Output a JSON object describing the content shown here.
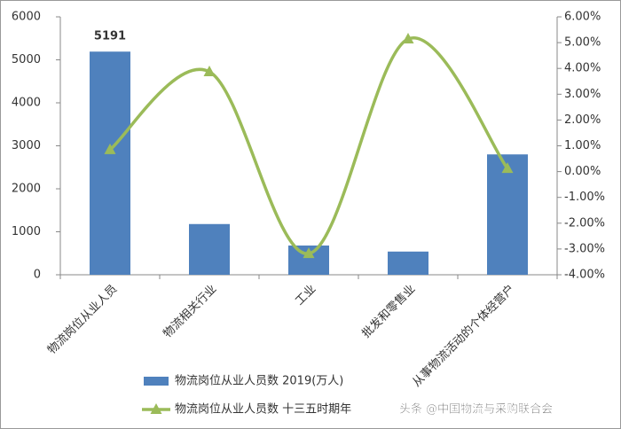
{
  "chart_data": {
    "type": "bar-line",
    "categories": [
      "物流岗位从业人员",
      "物流相关行业",
      "工业",
      "批发和零售业",
      "从事物流活动的个体经营户"
    ],
    "series": [
      {
        "name": "物流岗位从业人员数 2019(万人)",
        "type": "bar",
        "color": "#4f81bd",
        "values": [
          5191,
          1180,
          680,
          540,
          2800
        ],
        "value_labels": [
          "5191",
          null,
          null,
          null,
          null
        ]
      },
      {
        "name": "物流岗位从业人员数 十三五时期年",
        "type": "line",
        "axis": "y2",
        "color": "#9bbb59",
        "values": [
          0.85,
          3.87,
          -3.18,
          5.14,
          0.12
        ]
      }
    ],
    "ylim": [
      0,
      6000
    ],
    "yticks": [
      0,
      1000,
      2000,
      3000,
      4000,
      5000,
      6000
    ],
    "y2lim": [
      -4,
      6
    ],
    "y2ticks": [
      {
        "value": -4,
        "label": "-4.00%"
      },
      {
        "value": -3,
        "label": "-3.00%"
      },
      {
        "value": -2,
        "label": "-2.00%"
      },
      {
        "value": -1,
        "label": "-1.00%"
      },
      {
        "value": 0,
        "label": "0.00%"
      },
      {
        "value": 1,
        "label": "1.00%"
      },
      {
        "value": 2,
        "label": "2.00%"
      },
      {
        "value": 3,
        "label": "3.00%"
      },
      {
        "value": 4,
        "label": "4.00%"
      },
      {
        "value": 5,
        "label": "5.00%"
      },
      {
        "value": 6,
        "label": "6.00%"
      }
    ],
    "watermark": "头条 @中国物流与采购联合会"
  }
}
